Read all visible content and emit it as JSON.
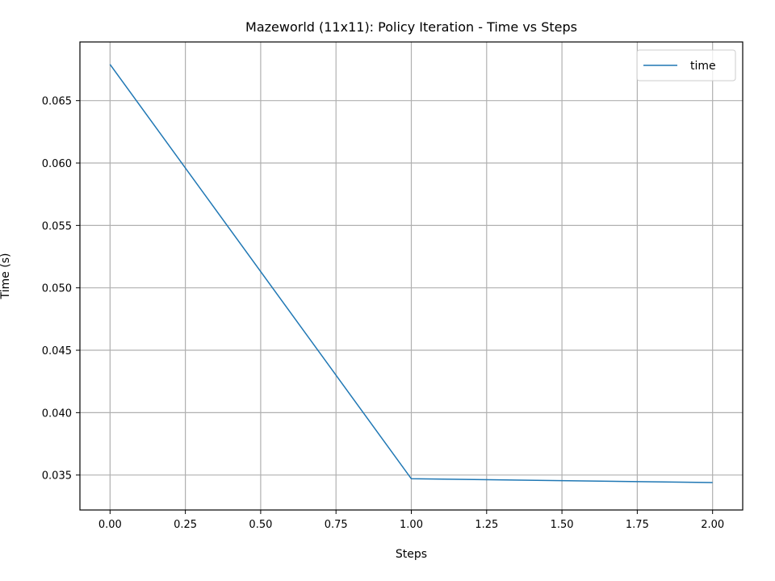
{
  "chart_data": {
    "type": "line",
    "title": "Mazeworld (11x11): Policy Iteration - Time vs Steps",
    "xlabel": "Steps",
    "ylabel": "Time (s)",
    "xlim": [
      -0.1,
      2.1
    ],
    "ylim": [
      0.0322,
      0.0697
    ],
    "x_ticks": [
      0.0,
      0.25,
      0.5,
      0.75,
      1.0,
      1.25,
      1.5,
      1.75,
      2.0
    ],
    "x_tick_labels": [
      "0.00",
      "0.25",
      "0.50",
      "0.75",
      "1.00",
      "1.25",
      "1.50",
      "1.75",
      "2.00"
    ],
    "y_ticks": [
      0.035,
      0.04,
      0.045,
      0.05,
      0.055,
      0.06,
      0.065
    ],
    "y_tick_labels": [
      "0.035",
      "0.040",
      "0.045",
      "0.050",
      "0.055",
      "0.060",
      "0.065"
    ],
    "grid": true,
    "legend_position": "top-right",
    "series": [
      {
        "name": "time",
        "color": "#1f77b4",
        "x": [
          0,
          1,
          2
        ],
        "y": [
          0.0679,
          0.0347,
          0.0344
        ]
      }
    ]
  }
}
